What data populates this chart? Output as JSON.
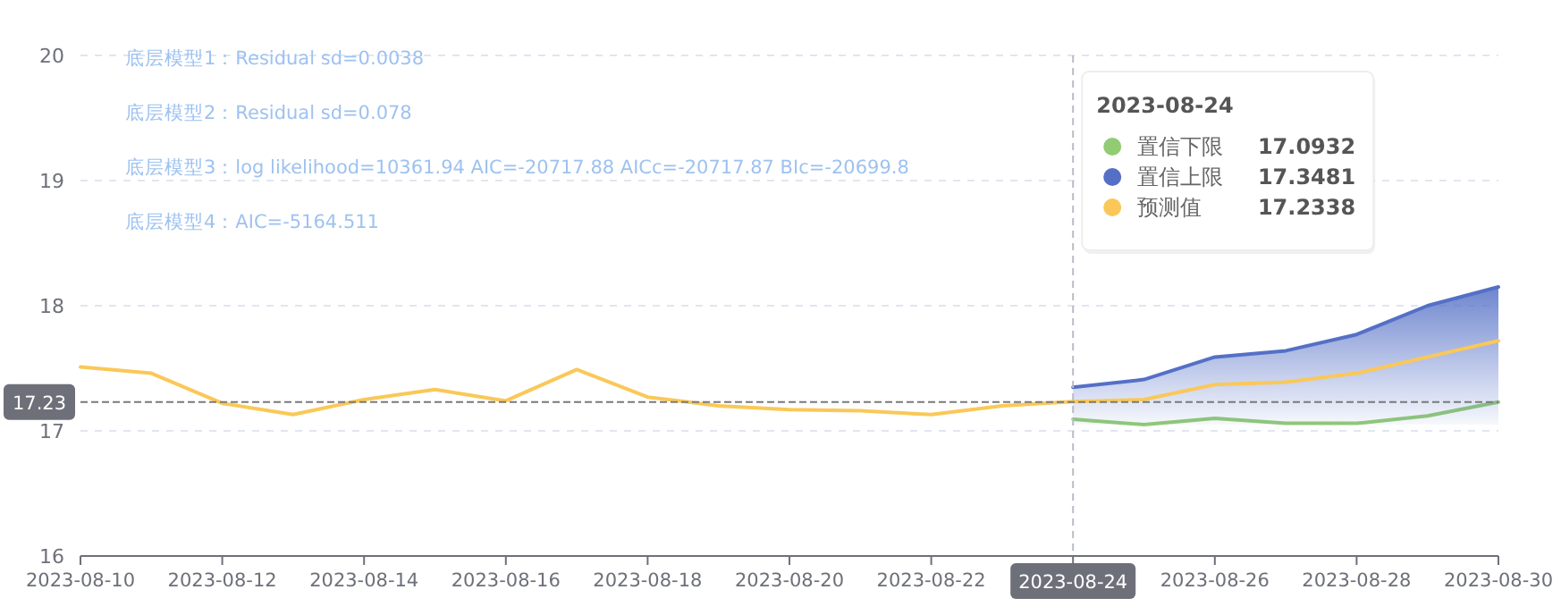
{
  "chart_data": {
    "type": "line",
    "x": [
      "2023-08-10",
      "2023-08-11",
      "2023-08-12",
      "2023-08-13",
      "2023-08-14",
      "2023-08-15",
      "2023-08-16",
      "2023-08-17",
      "2023-08-18",
      "2023-08-19",
      "2023-08-20",
      "2023-08-21",
      "2023-08-22",
      "2023-08-23",
      "2023-08-24",
      "2023-08-25",
      "2023-08-26",
      "2023-08-27",
      "2023-08-28",
      "2023-08-29",
      "2023-08-30"
    ],
    "series": [
      {
        "name": "置信下限",
        "color": "#91cc75",
        "values": [
          null,
          null,
          null,
          null,
          null,
          null,
          null,
          null,
          null,
          null,
          null,
          null,
          null,
          null,
          17.0932,
          17.05,
          17.1,
          17.06,
          17.06,
          17.12,
          17.23
        ]
      },
      {
        "name": "置信上限",
        "color": "#5470c6",
        "type": "area",
        "values": [
          null,
          null,
          null,
          null,
          null,
          null,
          null,
          null,
          null,
          null,
          null,
          null,
          null,
          null,
          17.3481,
          17.41,
          17.59,
          17.64,
          17.77,
          18.0,
          18.15
        ]
      },
      {
        "name": "预测值",
        "color": "#fac858",
        "values": [
          17.51,
          17.46,
          17.22,
          17.13,
          17.25,
          17.33,
          17.24,
          17.49,
          17.27,
          17.2,
          17.17,
          17.16,
          17.13,
          17.2,
          17.2338,
          17.25,
          17.37,
          17.39,
          17.46,
          17.59,
          17.72
        ]
      }
    ],
    "xlim": [
      "2023-08-10",
      "2023-08-30"
    ],
    "xticks": [
      "2023-08-10",
      "2023-08-12",
      "2023-08-14",
      "2023-08-16",
      "2023-08-18",
      "2023-08-20",
      "2023-08-22",
      "2023-08-24",
      "2023-08-26",
      "2023-08-28",
      "2023-08-30"
    ],
    "ylim": [
      16,
      20
    ],
    "yticks": [
      16,
      17,
      18,
      19,
      20
    ],
    "grid": "y",
    "legend": "top right",
    "marker": "none",
    "line_style": "solid",
    "ref_lines": [
      {
        "axis": "x",
        "value": "2023-08-24",
        "label": "2023-08-24"
      },
      {
        "axis": "y",
        "value": 17.23,
        "label": "17.23"
      }
    ],
    "annotations": [
      "底层模型1：Residual sd=0.0038",
      "底层模型2：Residual sd=0.078",
      "底层模型3：log likelihood=10361.94 AIC=-20717.88 AICc=-20717.87 BIc=-20699.8",
      "底层模型4：AIC=-5164.511",
      "2023-08-24",
      "17.0932",
      "17.3481",
      "17.2338"
    ]
  }
}
